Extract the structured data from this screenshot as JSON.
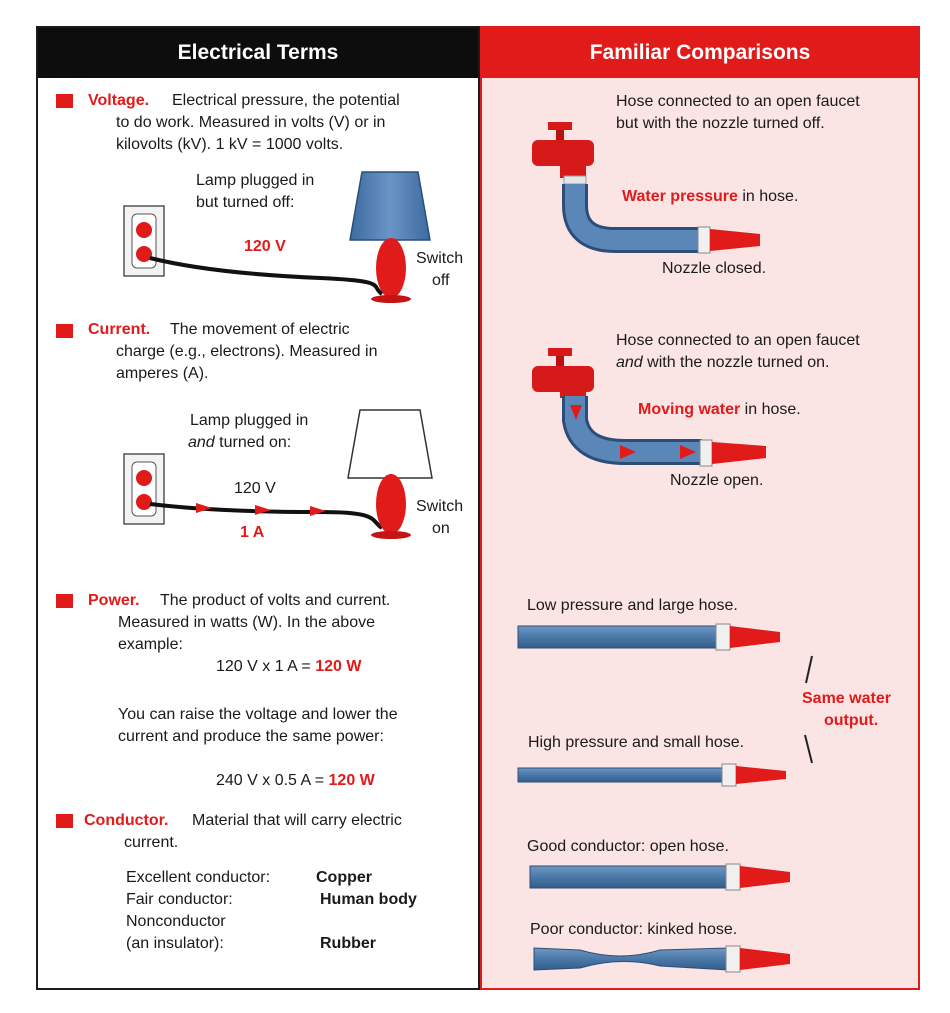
{
  "headers": {
    "left": "Electrical Terms",
    "right": "Familiar Comparisons"
  },
  "voltage": {
    "term": "Voltage.",
    "desc": [
      "Electrical pressure, the potential",
      "to do work. Measured in volts (V) or in",
      "kilovolts (kV). 1 kV = 1000 volts."
    ],
    "lamp_caption": [
      "Lamp plugged in",
      "but turned off:"
    ],
    "value": "120 V",
    "switch": [
      "Switch",
      "off"
    ]
  },
  "current": {
    "term": "Current.",
    "desc": [
      "The movement of electric",
      "charge (e.g., electrons). Measured in",
      "amperes (A)."
    ],
    "lamp_caption_1": "Lamp plugged in",
    "lamp_caption_2_em": "and",
    "lamp_caption_2_rest": " turned on:",
    "voltage_value": "120 V",
    "current_value": "1 A",
    "switch": [
      "Switch",
      "on"
    ]
  },
  "power": {
    "term": "Power.",
    "desc": [
      "The product of volts and current.",
      "Measured in watts (W). In the above",
      "example:"
    ],
    "eq1_lhs": "120 V x 1 A = ",
    "eq1_rhs": "120 W",
    "note": [
      "You can raise the voltage and lower the",
      "current and produce the same power:"
    ],
    "eq2_lhs": "240 V x 0.5 A = ",
    "eq2_rhs": "120 W"
  },
  "conductor": {
    "term": "Conductor.",
    "desc": [
      "Material that will carry electric",
      "current."
    ],
    "rows": [
      {
        "label": "Excellent conductor:",
        "value": "Copper"
      },
      {
        "label": "Fair conductor:",
        "value": "Human body"
      },
      {
        "label": "Nonconductor",
        "value": ""
      },
      {
        "label": "(an insulator):",
        "value": "Rubber"
      }
    ]
  },
  "hose1": {
    "caption": [
      "Hose connected to an open faucet",
      "but with the nozzle turned off."
    ],
    "pressure_em": "Water pressure",
    "pressure_rest": " in hose.",
    "nozzle": "Nozzle closed."
  },
  "hose2": {
    "caption_1": "Hose connected to an open faucet",
    "caption_2_em": "and",
    "caption_2_rest": " with the nozzle turned on.",
    "moving_em": "Moving water",
    "moving_rest": " in hose.",
    "nozzle": "Nozzle open."
  },
  "pressure_compare": {
    "low": "Low pressure and large hose.",
    "high": "High pressure and small hose.",
    "same": [
      "Same water",
      "output."
    ]
  },
  "conductor_compare": {
    "good": "Good conductor: open hose.",
    "poor": "Poor conductor: kinked hose."
  },
  "colors": {
    "accent": "#e11a1a",
    "hose": "#4a78a8",
    "panel_pink": "#fbe4e4",
    "lamp_shade": "#4f7bb0"
  }
}
